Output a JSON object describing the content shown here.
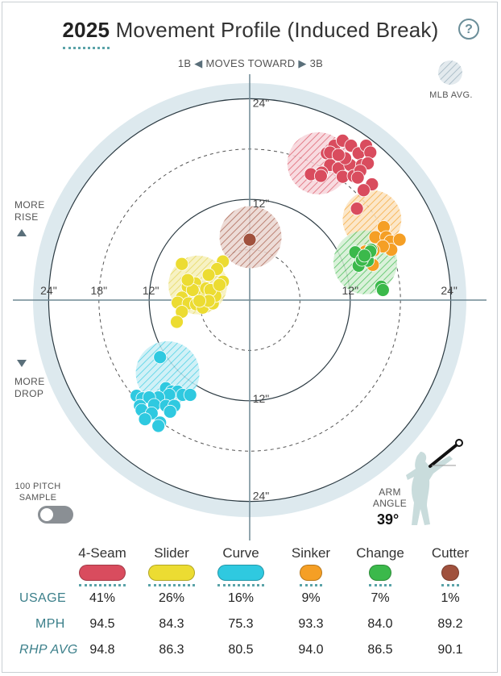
{
  "header": {
    "year": "2025",
    "title": "Movement Profile (Induced Break)",
    "help_icon": "question-circle-icon",
    "help_label": "?"
  },
  "direction": {
    "left": "1B",
    "middle": "MOVES TOWARD",
    "right": "3B"
  },
  "mlb_legend_label": "MLB AVG.",
  "rise_label": [
    "MORE",
    "RISE"
  ],
  "drop_label": [
    "MORE",
    "DROP"
  ],
  "sample_label": [
    "100 PITCH",
    "SAMPLE"
  ],
  "sample_toggle": false,
  "arm_angle": {
    "label": [
      "ARM",
      "ANGLE"
    ],
    "value": "39°"
  },
  "chart_data": {
    "type": "scatter",
    "x_unit": "inches of horizontal break",
    "y_unit": "inches of induced vertical break",
    "ring_labels": [
      "12\"",
      "18\"",
      "24\""
    ],
    "axis_ticks": {
      "left": [
        "24\"",
        "18\"",
        "12\""
      ],
      "right": [
        "12\"",
        "24\""
      ],
      "top": [
        "24\"",
        "12\""
      ],
      "bottom": [
        "12\"",
        "24\""
      ]
    },
    "xlim": [
      -28,
      28
    ],
    "ylim": [
      -28,
      28
    ],
    "series": [
      {
        "name": "4-Seam",
        "color": "#d94c5e",
        "mlb_avg": {
          "x": 8.2,
          "y": 16.3,
          "r": 3.7
        },
        "points": [
          [
            9.2,
            17.5
          ],
          [
            10.1,
            18.4
          ],
          [
            11.1,
            19.0
          ],
          [
            12.1,
            18.4
          ],
          [
            13.0,
            17.5
          ],
          [
            13.9,
            18.4
          ],
          [
            14.4,
            17.6
          ],
          [
            9.6,
            16.1
          ],
          [
            10.6,
            15.7
          ],
          [
            12.0,
            16.1
          ],
          [
            13.4,
            16.1
          ],
          [
            14.1,
            16.3
          ],
          [
            8.6,
            15.2
          ],
          [
            7.3,
            15.0
          ],
          [
            8.5,
            14.8
          ],
          [
            11.1,
            14.7
          ],
          [
            12.4,
            14.8
          ],
          [
            13.2,
            15.4
          ],
          [
            11.4,
            16.9
          ],
          [
            12.9,
            14.6
          ],
          [
            14.6,
            13.8
          ],
          [
            13.6,
            13.1
          ],
          [
            12.8,
            10.9
          ],
          [
            9.6,
            17.6
          ],
          [
            10.6,
            17.3
          ]
        ]
      },
      {
        "name": "Slider",
        "color": "#ecdc32",
        "mlb_avg": {
          "x": -6.2,
          "y": 1.8,
          "r": 3.5
        },
        "points": [
          [
            -3.2,
            4.6
          ],
          [
            -3.9,
            3.7
          ],
          [
            -4.9,
            3.0
          ],
          [
            -6.5,
            2.0
          ],
          [
            -6.2,
            1.0
          ],
          [
            -5.1,
            0.6
          ],
          [
            -7.4,
            1.6
          ],
          [
            -8.1,
            0.3
          ],
          [
            -8.6,
            -0.3
          ],
          [
            -7.3,
            -0.4
          ],
          [
            -6.4,
            -0.5
          ],
          [
            -5.6,
            -0.9
          ],
          [
            -4.4,
            -0.4
          ],
          [
            -4.1,
            0.5
          ],
          [
            -5.2,
            1.4
          ],
          [
            -3.2,
            2.2
          ],
          [
            -4.7,
            1.2
          ],
          [
            -6.8,
            1.2
          ],
          [
            -8.1,
            -1.4
          ],
          [
            -8.7,
            -2.6
          ],
          [
            -8.1,
            4.3
          ],
          [
            -7.4,
            2.4
          ],
          [
            -4.9,
            -0.1
          ],
          [
            -3.6,
            1.8
          ],
          [
            -6.0,
            -0.1
          ]
        ]
      },
      {
        "name": "Curve",
        "color": "#2fc9e0",
        "mlb_avg": {
          "x": -9.8,
          "y": -8.7,
          "r": 3.8
        },
        "points": [
          [
            -10.7,
            -6.8
          ],
          [
            -10.0,
            -10.5
          ],
          [
            -9.3,
            -10.9
          ],
          [
            -8.6,
            -10.9
          ],
          [
            -8.0,
            -11.3
          ],
          [
            -7.1,
            -11.3
          ],
          [
            -9.6,
            -11.3
          ],
          [
            -10.9,
            -11.6
          ],
          [
            -13.5,
            -11.4
          ],
          [
            -12.8,
            -11.7
          ],
          [
            -12.0,
            -11.6
          ],
          [
            -13.1,
            -12.6
          ],
          [
            -11.4,
            -12.5
          ],
          [
            -10.0,
            -12.6
          ],
          [
            -9.0,
            -12.6
          ],
          [
            -9.5,
            -13.3
          ],
          [
            -12.9,
            -13.1
          ],
          [
            -11.7,
            -13.5
          ],
          [
            -12.5,
            -14.2
          ],
          [
            -10.7,
            -14.6
          ],
          [
            -10.9,
            -15.0
          ]
        ]
      },
      {
        "name": "Sinker",
        "color": "#f59f25",
        "mlb_avg": {
          "x": 14.6,
          "y": 9.6,
          "r": 3.5
        },
        "points": [
          [
            16.0,
            8.7
          ],
          [
            15.0,
            7.5
          ],
          [
            16.3,
            7.5
          ],
          [
            16.8,
            7.0
          ],
          [
            17.9,
            7.2
          ],
          [
            16.9,
            6.0
          ],
          [
            15.9,
            6.4
          ],
          [
            14.8,
            5.9
          ],
          [
            13.8,
            5.8
          ],
          [
            14.7,
            4.2
          ]
        ]
      },
      {
        "name": "Change",
        "color": "#3bb94b",
        "mlb_avg": {
          "x": 13.8,
          "y": 4.5,
          "r": 3.8
        },
        "points": [
          [
            14.5,
            6.0
          ],
          [
            13.6,
            5.3
          ],
          [
            13.2,
            4.5
          ],
          [
            14.1,
            4.7
          ],
          [
            12.6,
            5.7
          ],
          [
            13.0,
            4.1
          ],
          [
            13.4,
            4.8
          ],
          [
            15.7,
            1.6
          ],
          [
            15.9,
            1.2
          ],
          [
            14.4,
            5.8
          ],
          [
            13.7,
            5.3
          ]
        ]
      },
      {
        "name": "Cutter",
        "color": "#a0513d",
        "mlb_avg": {
          "x": 0.1,
          "y": 7.5,
          "r": 3.7
        },
        "points": [
          [
            0.0,
            7.2
          ]
        ]
      }
    ]
  },
  "stats": {
    "row_labels": {
      "usage": "USAGE",
      "mph": "MPH",
      "rhp": "RHP AVG"
    },
    "pitches": [
      {
        "name": "4-Seam",
        "color": "#d94c5e",
        "usage": "41%",
        "mph": "94.5",
        "rhp_avg": "94.8"
      },
      {
        "name": "Slider",
        "color": "#ecdc32",
        "usage": "26%",
        "mph": "84.3",
        "rhp_avg": "86.3"
      },
      {
        "name": "Curve",
        "color": "#2fc9e0",
        "usage": "16%",
        "mph": "75.3",
        "rhp_avg": "80.5"
      },
      {
        "name": "Sinker",
        "color": "#f59f25",
        "usage": "9%",
        "mph": "93.3",
        "rhp_avg": "94.0"
      },
      {
        "name": "Change",
        "color": "#3bb94b",
        "usage": "7%",
        "mph": "84.0",
        "rhp_avg": "86.5"
      },
      {
        "name": "Cutter",
        "color": "#a0513d",
        "usage": "1%",
        "mph": "89.2",
        "rhp_avg": "90.1"
      }
    ]
  }
}
